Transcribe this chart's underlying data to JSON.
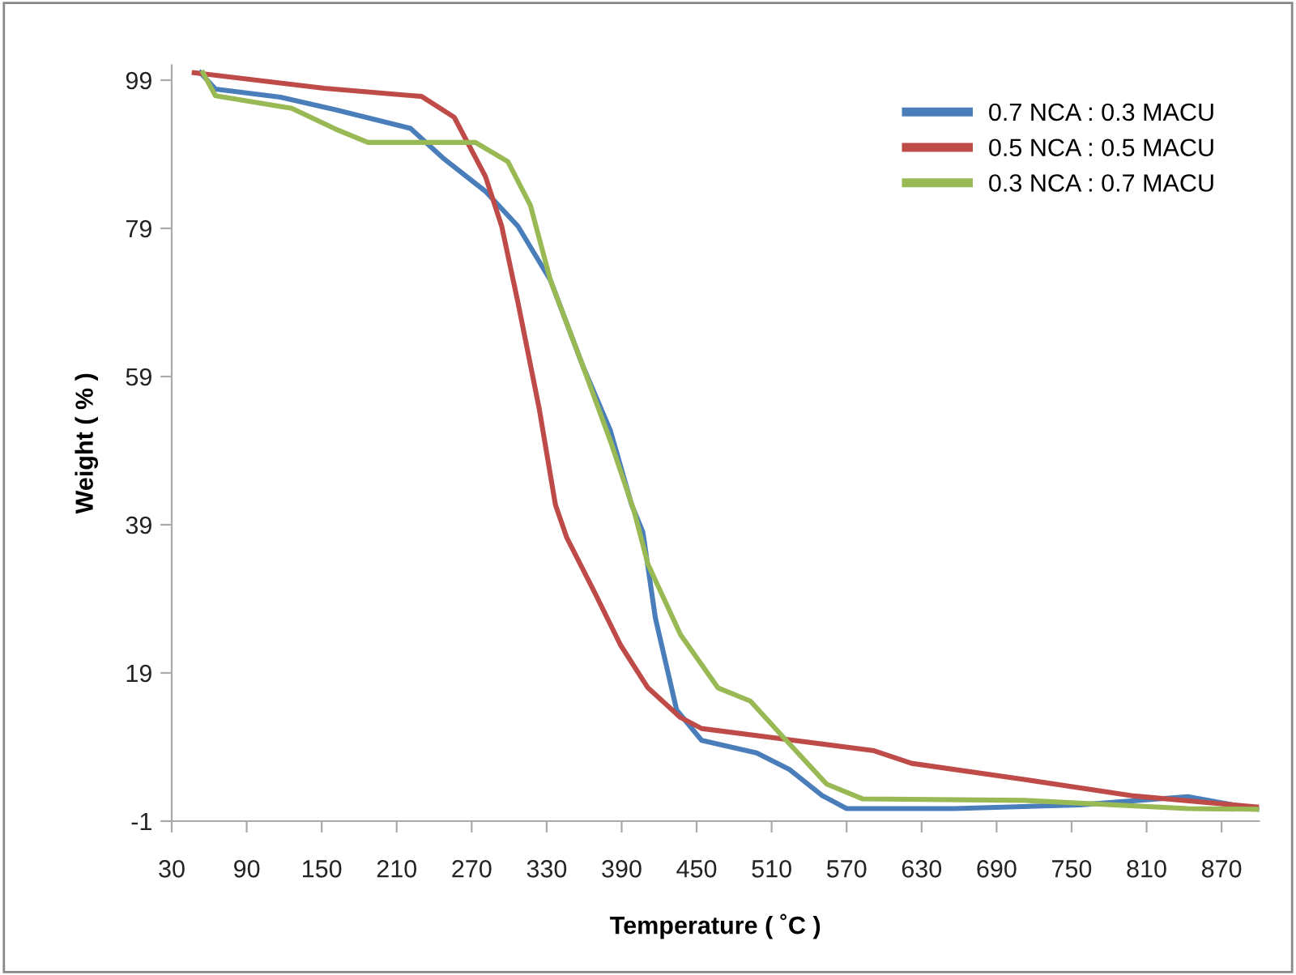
{
  "chart_data": {
    "type": "line",
    "xlabel": "Temperature ( ˚C )",
    "ylabel": "Weight ( % )",
    "xlim": [
      30,
      900
    ],
    "xticks": [
      30,
      90,
      150,
      210,
      270,
      330,
      390,
      450,
      510,
      570,
      630,
      690,
      750,
      810,
      870
    ],
    "ylim": [
      -1,
      101
    ],
    "yticks": [
      -1,
      19,
      39,
      59,
      79,
      99
    ],
    "grid": false,
    "legend": "top right",
    "marker": "none",
    "line_style": "solid",
    "series": [
      {
        "name": "0.7 NCA : 0.3 MACU",
        "color": "#4a7ebb",
        "x": [
          53,
          65,
          117,
          161,
          221,
          247,
          281,
          307,
          333,
          359,
          381,
          398,
          407,
          417,
          434,
          454,
          498,
          524,
          550,
          570,
          656,
          757,
          843,
          899
        ],
        "values": [
          100,
          97.8,
          96.7,
          95,
          92.5,
          88.5,
          84,
          79.3,
          72,
          60.4,
          51.7,
          41.7,
          38,
          26.4,
          14,
          9.9,
          8.2,
          6,
          2.5,
          0.7,
          0.7,
          1.2,
          2.3,
          0.6
        ]
      },
      {
        "name": "0.5 NCA : 0.5 MACU",
        "color": "#be4b48",
        "x": [
          48,
          152,
          230,
          256,
          281,
          294,
          307,
          324,
          337,
          346,
          368,
          389,
          411,
          437,
          454,
          519,
          592,
          622,
          713,
          800,
          899
        ],
        "values": [
          100,
          97.9,
          96.8,
          94,
          86,
          79.3,
          69,
          54.7,
          41.7,
          37.3,
          30,
          22.8,
          17,
          13,
          11.5,
          10.1,
          8.5,
          6.8,
          4.6,
          2.4,
          0.9
        ]
      },
      {
        "name": "0.3 NCA : 0.7 MACU",
        "color": "#98b954",
        "x": [
          55,
          65,
          126,
          161,
          187,
          239,
          273,
          299,
          317,
          333,
          359,
          381,
          400,
          411,
          437,
          467,
          493,
          519,
          554,
          583,
          713,
          843,
          899
        ],
        "values": [
          100,
          96.9,
          95.2,
          92.4,
          90.6,
          90.6,
          90.6,
          88,
          82.1,
          72,
          60.4,
          50.3,
          40.8,
          33.7,
          24.2,
          17,
          15.2,
          10.4,
          4,
          2,
          1.8,
          0.7,
          0.6
        ]
      }
    ]
  }
}
